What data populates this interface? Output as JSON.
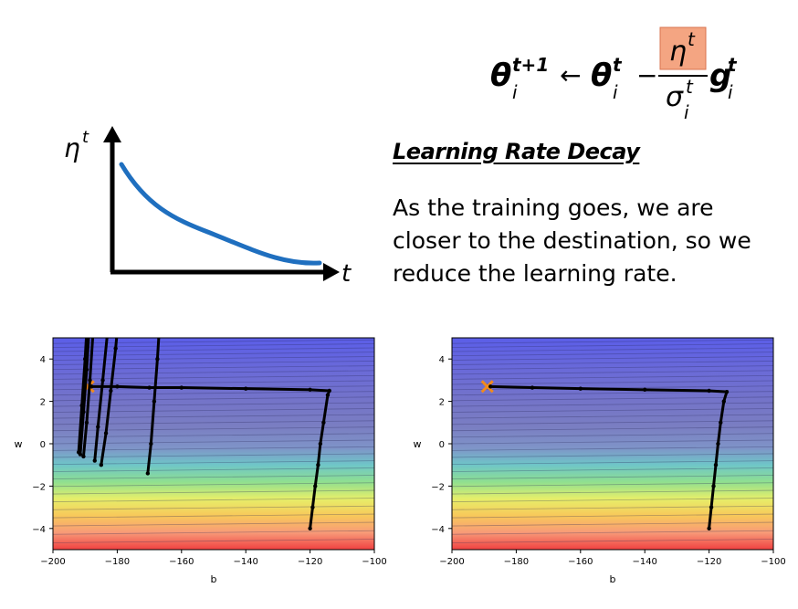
{
  "formula": {
    "lhs_theta": "θ",
    "lhs_sub": "i",
    "lhs_sup": "t+1",
    "arrow": "←",
    "rhs_theta": "θ",
    "rhs_sub": "i",
    "rhs_sup": "t",
    "minus": "−",
    "eta": "η",
    "eta_sup": "t",
    "sigma": "σ",
    "sigma_sub": "i",
    "sigma_sup": "t",
    "g": "g",
    "g_sub": "i",
    "g_sup": "t",
    "highlight_color": "#f4a582"
  },
  "heading": "Learning Rate Decay",
  "body_text": "As the training goes, we are closer to the destination, so we reduce the learning rate.",
  "decay_sketch": {
    "y_label_eta": "η",
    "y_label_sup": "t",
    "x_label": "t",
    "curve_color": "#1f6fbf"
  },
  "plots": {
    "x_label": "b",
    "y_label": "w",
    "x_ticks": [
      "−200",
      "−180",
      "−160",
      "−140",
      "−120",
      "−100"
    ],
    "y_ticks": [
      "4",
      "2",
      "0",
      "−2",
      "−4"
    ]
  },
  "chart_data": [
    {
      "type": "line",
      "title": "",
      "xlabel": "b",
      "ylabel": "w",
      "xlim": [
        -200,
        -100
      ],
      "ylim": [
        -5,
        5
      ],
      "target": {
        "b": -189,
        "w": 2.7
      },
      "series": [
        {
          "values": [
            [
              -120,
              -4
            ],
            [
              -119.2,
              -3.0
            ],
            [
              -118.4,
              -2.0
            ],
            [
              -117.5,
              -1.0
            ],
            [
              -116.8,
              0.0
            ],
            [
              -115.8,
              1.0
            ],
            [
              -114.5,
              2.3
            ],
            [
              -114,
              2.5
            ],
            [
              -120,
              2.55
            ],
            [
              -140,
              2.6
            ],
            [
              -160,
              2.65
            ],
            [
              -170,
              2.65
            ],
            [
              -180,
              2.7
            ],
            [
              -188,
              2.7
            ]
          ]
        },
        {
          "values": [
            [
              -170.5,
              -1.4
            ],
            [
              -169.5,
              0
            ],
            [
              -168.5,
              2
            ],
            [
              -167.5,
              4
            ],
            [
              -167,
              5.2
            ]
          ]
        },
        {
          "values": [
            [
              -185,
              -1.0
            ],
            [
              -183.5,
              0.5
            ],
            [
              -182,
              2.5
            ],
            [
              -180.5,
              4.5
            ],
            [
              -180,
              5.3
            ]
          ]
        },
        {
          "values": [
            [
              -187,
              -0.8
            ],
            [
              -186,
              0.8
            ],
            [
              -184.5,
              3
            ],
            [
              -183,
              5.3
            ]
          ]
        },
        {
          "values": [
            [
              -190.5,
              -0.6
            ],
            [
              -189.5,
              1
            ],
            [
              -188.5,
              3
            ],
            [
              -187.5,
              5.3
            ]
          ]
        },
        {
          "values": [
            [
              -191.5,
              -0.5
            ],
            [
              -190.5,
              1.5
            ],
            [
              -189.5,
              3.5
            ],
            [
              -188.8,
              5.3
            ]
          ]
        },
        {
          "values": [
            [
              -192,
              -0.4
            ],
            [
              -191,
              1.8
            ],
            [
              -190,
              4
            ],
            [
              -189.5,
              5.3
            ]
          ]
        }
      ]
    },
    {
      "type": "line",
      "title": "",
      "xlabel": "b",
      "ylabel": "w",
      "xlim": [
        -200,
        -100
      ],
      "ylim": [
        -5,
        5
      ],
      "target": {
        "b": -189,
        "w": 2.7
      },
      "series": [
        {
          "values": [
            [
              -120,
              -4
            ],
            [
              -119.3,
              -3.0
            ],
            [
              -118.6,
              -2.0
            ],
            [
              -117.9,
              -1.0
            ],
            [
              -117.2,
              0.0
            ],
            [
              -116.4,
              1.0
            ],
            [
              -115.4,
              2.0
            ],
            [
              -114.5,
              2.45
            ],
            [
              -120,
              2.5
            ],
            [
              -140,
              2.55
            ],
            [
              -160,
              2.6
            ],
            [
              -175,
              2.65
            ],
            [
              -188,
              2.7
            ]
          ]
        }
      ]
    }
  ]
}
